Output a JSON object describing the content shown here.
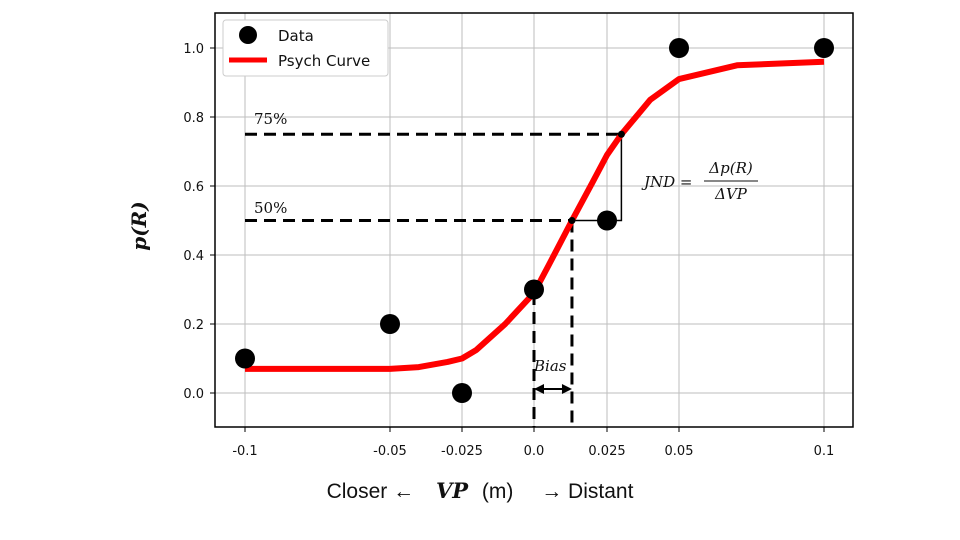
{
  "chart_data": {
    "type": "scatter",
    "ylabel": "p(R)",
    "xlabel": {
      "left": "Closer ←",
      "variable": "VP",
      "unit": "(m)",
      "right": "→ Distant"
    },
    "ylim": [
      -0.1,
      1.1
    ],
    "yticks": [
      0.0,
      0.2,
      0.4,
      0.6,
      0.8,
      1.0
    ],
    "ytick_labels": [
      "0.0",
      "0.2",
      "0.4",
      "0.6",
      "0.8",
      "1.0"
    ],
    "xticks": [
      -0.1,
      -0.05,
      -0.025,
      0.0,
      0.025,
      0.05,
      0.1
    ],
    "xtick_labels": [
      "-0.1",
      "-0.05",
      "-0.025",
      "0.0",
      "0.025",
      "0.05",
      "0.1"
    ],
    "x_scale": "symlog-like (non-uniform tick spacing)",
    "grid": true,
    "legend_position": "top-left",
    "series": [
      {
        "name": "Data",
        "kind": "points",
        "color": "#000000",
        "x": [
          -0.1,
          -0.05,
          -0.025,
          0.0,
          0.025,
          0.05,
          0.1
        ],
        "y": [
          0.1,
          0.2,
          0.0,
          0.3,
          0.5,
          1.0,
          1.0
        ]
      },
      {
        "name": "Psych Curve",
        "kind": "curve",
        "color": "#ff0000",
        "x": [
          -0.1,
          -0.075,
          -0.05,
          -0.04,
          -0.03,
          -0.025,
          -0.02,
          -0.01,
          0.0,
          0.005,
          0.013,
          0.02,
          0.025,
          0.03,
          0.04,
          0.05,
          0.07,
          0.1
        ],
        "y": [
          0.07,
          0.07,
          0.07,
          0.075,
          0.09,
          0.1,
          0.125,
          0.2,
          0.29,
          0.37,
          0.5,
          0.61,
          0.69,
          0.75,
          0.85,
          0.91,
          0.95,
          0.96
        ]
      }
    ],
    "annotations": {
      "p75_label": "75%",
      "p50_label": "50%",
      "jnd_lhs": "JND =",
      "jnd_num": "Δp(R)",
      "jnd_den": "ΔVP",
      "bias_label": "Bias",
      "p75_value": 0.75,
      "p50_value": 0.5,
      "x_at_50": 0.013,
      "x_at_75": 0.03,
      "bias_start_x": 0.0,
      "dashed_start_x": -0.1
    }
  }
}
